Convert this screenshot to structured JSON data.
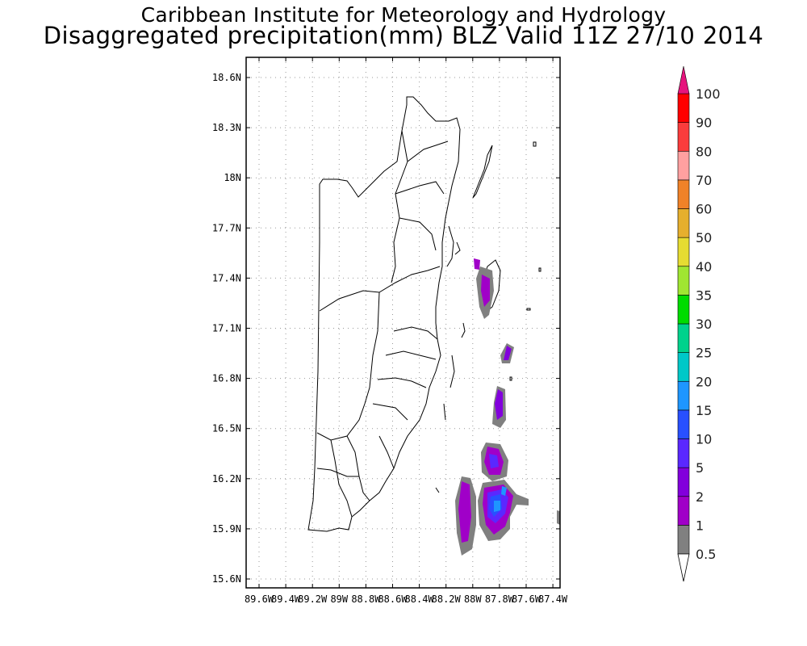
{
  "header": {
    "title_line1": "Caribbean Institute for Meteorology and Hydrology",
    "title_line2": "Disaggregated precipitation(mm) BLZ Valid 11Z 27/10 2014"
  },
  "map": {
    "lat_ticks": [
      "18.6N",
      "18.3N",
      "18N",
      "17.7N",
      "17.4N",
      "17.1N",
      "16.8N",
      "16.5N",
      "16.2N",
      "15.9N",
      "15.6N"
    ],
    "lon_ticks": [
      "89.6W",
      "89.4W",
      "89.2W",
      "89W",
      "88.8W",
      "88.6W",
      "88.4W",
      "88.2W",
      "88W",
      "87.8W",
      "87.6W",
      "87.4W"
    ]
  },
  "colorbar": {
    "levels": [
      "0.5",
      "1",
      "2",
      "5",
      "10",
      "15",
      "20",
      "25",
      "30",
      "35",
      "40",
      "50",
      "60",
      "70",
      "80",
      "90",
      "100"
    ],
    "colors": [
      "#808080",
      "#a000c8",
      "#8200dc",
      "#5a28ff",
      "#2850ff",
      "#1e96ff",
      "#00c8c8",
      "#00d28c",
      "#00dc00",
      "#a0e632",
      "#e6dc32",
      "#e6af2d",
      "#f08228",
      "#ffa0a0",
      "#fa3c3c",
      "#ff0000",
      "#fa3c3c"
    ],
    "top_arrow_color": "#e6147d",
    "bottom_arrow_color": "#ffffff"
  }
}
